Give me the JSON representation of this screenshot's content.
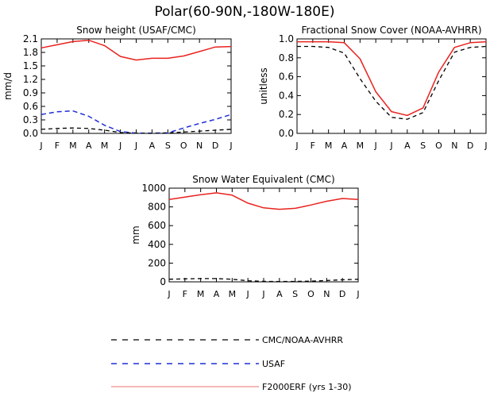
{
  "page_title": "Polar(60-90N,-180W-180E)",
  "colors": {
    "obs": "#000000",
    "usaf": "#1f2fd6",
    "model": "#e8231f",
    "legend_model": "#f5b8b8"
  },
  "months": [
    "J",
    "F",
    "M",
    "A",
    "M",
    "J",
    "J",
    "A",
    "S",
    "O",
    "N",
    "D",
    "J"
  ],
  "chart_data": [
    {
      "type": "line",
      "title": "Snow height (USAF/CMC)",
      "xlabel": "",
      "ylabel": "mm/d",
      "ylim": [
        0,
        2.1
      ],
      "yticks": [
        "0.0",
        "0.3",
        "0.6",
        "0.9",
        "1.2",
        "1.5",
        "1.8",
        "2.1"
      ],
      "ytick_values": [
        0,
        0.3,
        0.6,
        0.9,
        1.2,
        1.5,
        1.8,
        2.1
      ],
      "series": [
        {
          "name": "F2000ERF (yrs 1-30)",
          "style": "model",
          "values": [
            1.9,
            1.97,
            2.04,
            2.07,
            1.95,
            1.71,
            1.63,
            1.67,
            1.67,
            1.72,
            1.82,
            1.92,
            1.93
          ]
        },
        {
          "name": "USAF",
          "style": "usaf",
          "values": [
            0.42,
            0.48,
            0.5,
            0.38,
            0.18,
            0.04,
            0.005,
            0.005,
            0.01,
            0.12,
            0.22,
            0.31,
            0.42
          ]
        },
        {
          "name": "CMC/NOAA-AVHRR",
          "style": "obs",
          "values": [
            0.09,
            0.11,
            0.12,
            0.11,
            0.07,
            0.02,
            0.005,
            0.0,
            0.01,
            0.03,
            0.05,
            0.07,
            0.09
          ]
        }
      ]
    },
    {
      "type": "line",
      "title": "Fractional Snow Cover (NOAA-AVHRR)",
      "xlabel": "",
      "ylabel": "unitless",
      "ylim": [
        0,
        1.0
      ],
      "yticks": [
        "0.0",
        "0.2",
        "0.4",
        "0.6",
        "0.8",
        "1.0"
      ],
      "ytick_values": [
        0,
        0.2,
        0.4,
        0.6,
        0.8,
        1.0
      ],
      "series": [
        {
          "name": "F2000ERF (yrs 1-30)",
          "style": "model",
          "values": [
            0.97,
            0.97,
            0.97,
            0.96,
            0.79,
            0.44,
            0.23,
            0.19,
            0.27,
            0.65,
            0.91,
            0.96,
            0.97
          ]
        },
        {
          "name": "CMC/NOAA-AVHRR",
          "style": "obs",
          "values": [
            0.92,
            0.92,
            0.91,
            0.85,
            0.58,
            0.34,
            0.17,
            0.15,
            0.22,
            0.56,
            0.86,
            0.91,
            0.92
          ]
        }
      ]
    },
    {
      "type": "line",
      "title": "Snow Water Equivalent (CMC)",
      "xlabel": "",
      "ylabel": "mm",
      "ylim": [
        0,
        1000
      ],
      "yticks": [
        "0",
        "200",
        "400",
        "600",
        "800",
        "1000"
      ],
      "ytick_values": [
        0,
        200,
        400,
        600,
        800,
        1000
      ],
      "series": [
        {
          "name": "F2000ERF (yrs 1-30)",
          "style": "model",
          "values": [
            880,
            905,
            930,
            950,
            925,
            840,
            790,
            775,
            785,
            820,
            860,
            890,
            880
          ]
        },
        {
          "name": "CMC/NOAA-AVHRR",
          "style": "obs",
          "values": [
            28,
            32,
            35,
            35,
            28,
            12,
            5,
            3,
            4,
            8,
            14,
            22,
            28
          ]
        }
      ]
    }
  ],
  "legend": [
    {
      "label": "CMC/NOAA-AVHRR",
      "style": "obs"
    },
    {
      "label": "USAF",
      "style": "usaf"
    },
    {
      "label": "F2000ERF (yrs 1-30)",
      "style": "legend_model"
    }
  ]
}
